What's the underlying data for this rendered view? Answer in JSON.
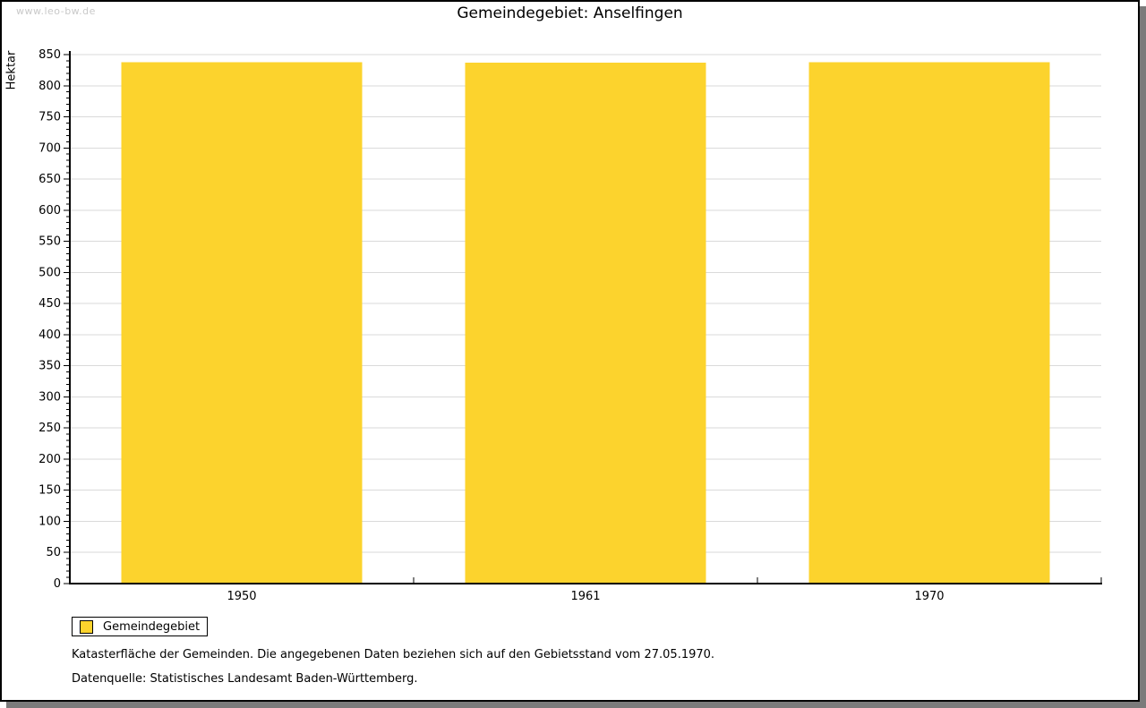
{
  "watermark": "www.leo-bw.de",
  "title": "Gemeindegebiet: Anselfingen",
  "legend": {
    "label": "Gemeindegebiet"
  },
  "notes": {
    "line1": "Katasterfläche der Gemeinden. Die angegebenen Daten beziehen sich auf den Gebietsstand vom 27.05.1970.",
    "line2": "Datenquelle: Statistisches Landesamt Baden-Württemberg."
  },
  "colors": {
    "bar": "#fcd32d",
    "grid": "#dadada",
    "axis": "#000000",
    "shadow": "#7b7b7b",
    "watermark": "#c9c9c9"
  },
  "chart_data": {
    "type": "bar",
    "categories": [
      "1950",
      "1961",
      "1970"
    ],
    "series": [
      {
        "name": "Gemeindegebiet",
        "values": [
          838,
          837,
          838
        ]
      }
    ],
    "title": "Gemeindegebiet: Anselfingen",
    "xlabel": "",
    "ylabel": "Hektar",
    "ylim": [
      0,
      850
    ],
    "y_major_step": 50,
    "y_minor_step": 10,
    "grid": true,
    "legend_position": "bottom-left"
  }
}
